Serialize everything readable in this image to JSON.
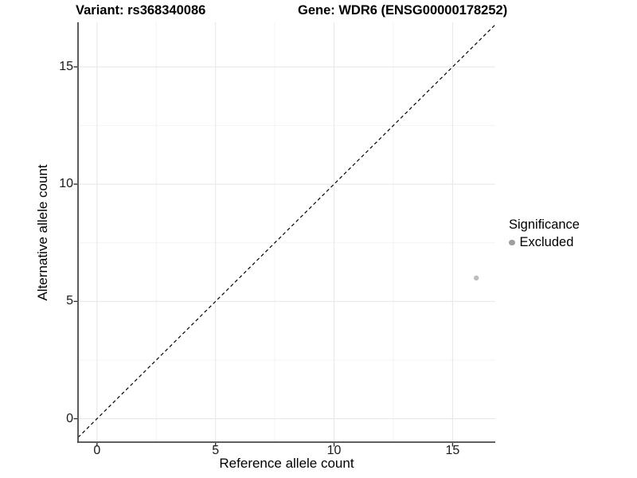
{
  "titles": {
    "variant": "Variant: rs368340086",
    "gene": "Gene: WDR6 (ENSG00000178252)"
  },
  "chart_data": {
    "type": "scatter",
    "xlabel": "Reference allele count",
    "ylabel": "Alternative allele count",
    "xlim": [
      -0.8,
      16.8
    ],
    "ylim": [
      -1.0,
      16.9
    ],
    "x_breaks": [
      0,
      5,
      10,
      15
    ],
    "y_breaks": [
      0,
      5,
      10,
      15
    ],
    "x_minor_breaks": [
      2.5,
      7.5,
      12.5
    ],
    "y_minor_breaks": [
      2.5,
      7.5,
      12.5
    ],
    "grid": true,
    "identity_line": {
      "equation": "y = x",
      "style": "dashed",
      "color": "#000000",
      "from": -0.8,
      "to": 16.8
    },
    "series": [
      {
        "name": "Excluded",
        "color": "#bdbdbd",
        "point_radius": 3.2,
        "points": [
          {
            "x": 16,
            "y": 6
          }
        ]
      }
    ],
    "legend": {
      "title": "Significance",
      "position": "right",
      "items": [
        {
          "label": "Excluded",
          "color": "#9e9e9e"
        }
      ]
    }
  },
  "colors": {
    "background": "#ffffff",
    "grid_major": "#e8e8e8",
    "grid_minor": "#f3f3f3",
    "axis_line": "#4a4a4a",
    "tick_mark": "#333333",
    "text": "#000000"
  }
}
